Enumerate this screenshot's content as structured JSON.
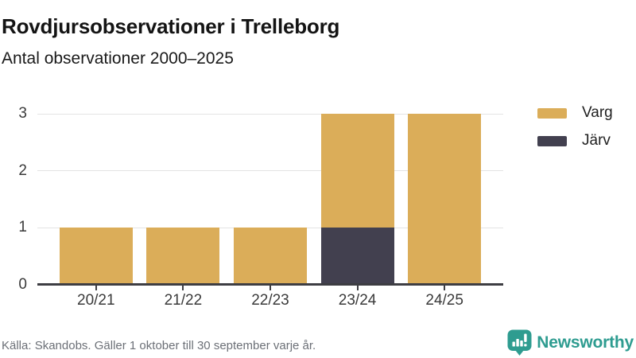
{
  "chart_data": {
    "type": "bar",
    "stacked": true,
    "title": "Rovdjursobservationer i Trelleborg",
    "subtitle": "Antal observationer 2000–2025",
    "categories": [
      "20/21",
      "21/22",
      "22/23",
      "23/24",
      "24/25"
    ],
    "series": [
      {
        "name": "Varg",
        "color": "#DBAD59",
        "values": [
          1,
          1,
          1,
          2,
          3
        ]
      },
      {
        "name": "Järv",
        "color": "#42404F",
        "values": [
          0,
          0,
          0,
          1,
          0
        ]
      }
    ],
    "stack_order_bottom_to_top": [
      "Järv",
      "Varg"
    ],
    "ylim": [
      0,
      3
    ],
    "yticks": [
      0,
      1,
      2,
      3
    ],
    "grid": "horizontal",
    "legend_position": "top-right"
  },
  "footer": {
    "source": "Källa: Skandobs. Gäller 1 oktober till 30 september varje år.",
    "brand": "Newsworthy"
  },
  "colors": {
    "accent_gold": "#DBAD59",
    "accent_dark": "#42404F",
    "brand_teal": "#2E9C90",
    "axis_line": "#3D3D42",
    "gridline": "#E3E3E3",
    "text_dark": "#141414",
    "text_muted": "#6C7077"
  }
}
